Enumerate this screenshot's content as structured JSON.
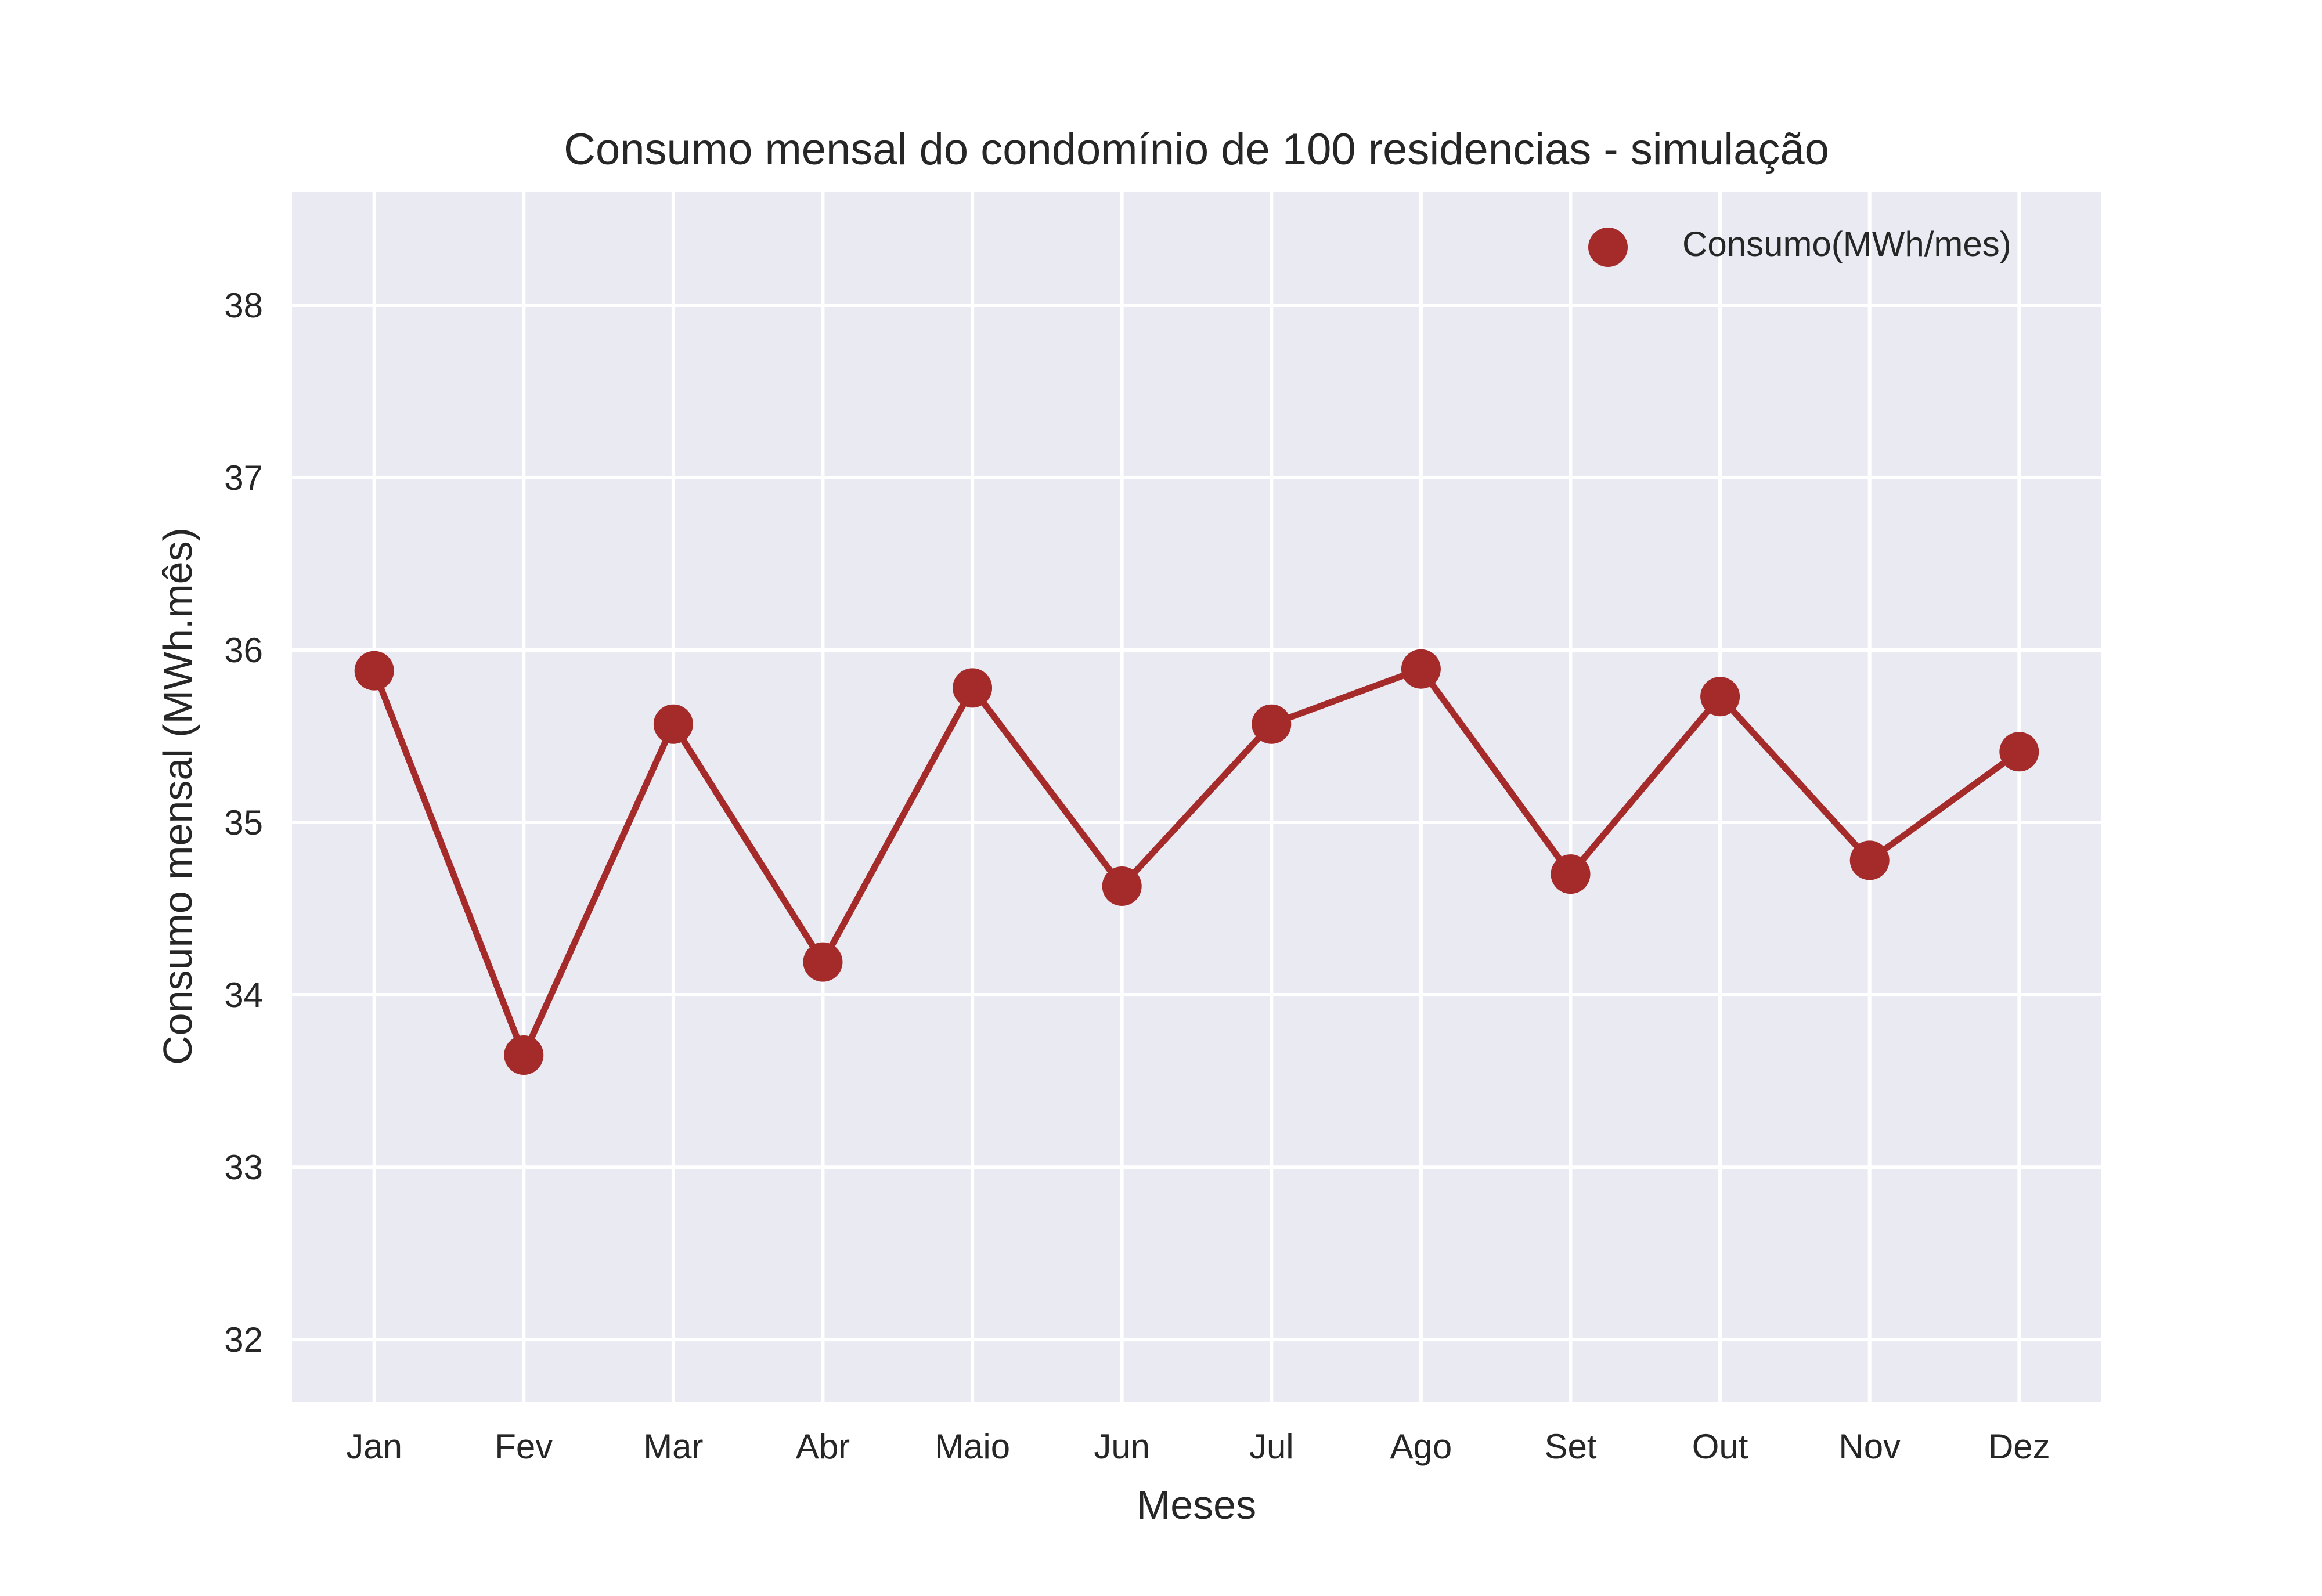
{
  "chart_data": {
    "type": "line",
    "title": "Consumo mensal do condomínio de 100 residencias - simulação",
    "xlabel": "Meses",
    "ylabel": "Consumo mensal (MWh.mês)",
    "categories": [
      "Jan",
      "Fev",
      "Mar",
      "Abr",
      "Maio",
      "Jun",
      "Jul",
      "Ago",
      "Set",
      "Out",
      "Nov",
      "Dez"
    ],
    "series": [
      {
        "name": "Consumo(MWh/mes)",
        "values": [
          35.88,
          33.65,
          35.57,
          34.19,
          35.78,
          34.63,
          35.57,
          35.89,
          34.7,
          35.73,
          34.78,
          35.41
        ],
        "color": "#a52a2a"
      }
    ],
    "ylim": [
      31.64,
      38.66
    ],
    "yticks": [
      32,
      33,
      34,
      35,
      36,
      37,
      38
    ],
    "grid": true,
    "legend": "top-right",
    "background": "#eaeaf2"
  }
}
